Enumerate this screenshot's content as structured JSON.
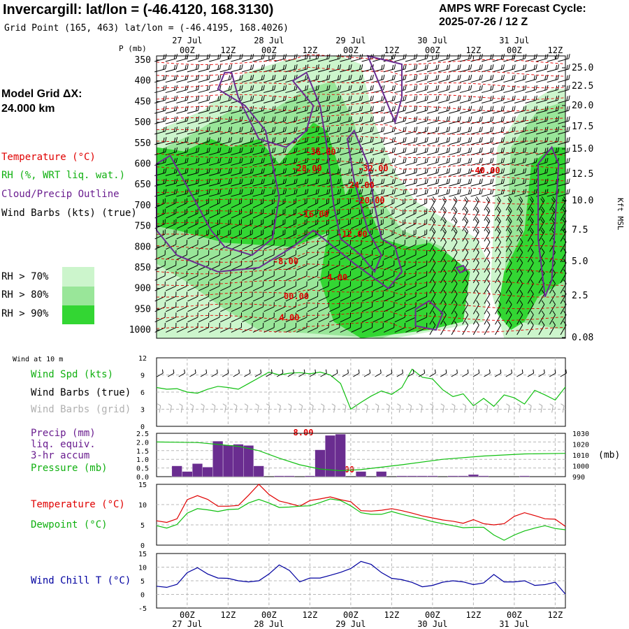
{
  "header": {
    "title": "Invercargill:  lat/lon = (-46.4120, 168.3130)",
    "grid_point": "Grid Point (165, 463) lat/lon = (-46.4195, 168.4026)",
    "cycle_line1": "AMPS WRF Forecast Cycle:",
    "cycle_line2": "2025-07-26 / 12  Z"
  },
  "model_grid": {
    "line1": "Model Grid ΔX:",
    "line2": " 24.000 km"
  },
  "legend": {
    "temperature": "Temperature (°C)",
    "rh": "RH (%, WRT liq. wat.)",
    "cloud": "Cloud/Precip Outline",
    "wind": "Wind Barbs (kts) (true)",
    "rh_levels": [
      "RH > 70%",
      "RH > 80%",
      "RH > 90%"
    ]
  },
  "colors": {
    "rh70": "#ccf5cc",
    "rh80": "#99e699",
    "rh90": "#33d633",
    "temp": "#e00000",
    "dew": "#10c010",
    "cloud": "#6a2d90",
    "chill": "#0000a0",
    "precip": "#6a2d90",
    "grid": "#b8b8b8"
  },
  "time_axis": {
    "tick_labels": [
      "00Z",
      "12Z",
      "00Z",
      "12Z",
      "00Z",
      "12Z",
      "00Z",
      "12Z",
      "00Z",
      "12Z"
    ],
    "day_labels": [
      "27 Jul",
      "28 Jul",
      "29 Jul",
      "30 Jul",
      "31 Jul"
    ]
  },
  "xsec": {
    "p_label": "P (mb)",
    "p_ticks": [
      "350",
      "400",
      "450",
      "500",
      "550",
      "600",
      "650",
      "700",
      "750",
      "800",
      "850",
      "900",
      "950",
      "1000"
    ],
    "kft_ticks": [
      "25.0",
      "22.5",
      "20.0",
      "17.5",
      "15.0",
      "12.5",
      "10.0",
      "7.5",
      "5.0",
      "2.5",
      "0.08"
    ],
    "kft_label": "Kft MSL",
    "isotherm_labels": [
      "-36.00",
      "-28.00",
      "-32.00",
      "-40.00",
      "-24.00",
      "-20.00",
      "-16.00",
      "-12.00",
      "-8.00",
      "-4.00",
      "00.00",
      "4.00",
      "8.00",
      "12.00"
    ]
  },
  "wind_panel": {
    "caption": "Wind at 10 m",
    "spd_label": "Wind Spd (kts)",
    "barbs_true_label": "Wind Barbs (true)",
    "barbs_grid_label": "Wind Barbs (grid)",
    "y_ticks": [
      "12",
      "9",
      "6",
      "3",
      "0"
    ]
  },
  "precip_panel": {
    "label1": "Precip (mm)",
    "label2": "liq. equiv.",
    "label3": "3-hr accum",
    "label4": "Pressure (mb)",
    "left_ticks": [
      "2.5",
      "2.0",
      "1.5",
      "1.0",
      "0.5",
      "0.0"
    ],
    "right_ticks": [
      "1030",
      "1020",
      "1010",
      "1000",
      "990"
    ],
    "right_unit": "(mb)"
  },
  "temp_panel": {
    "label1": "Temperature (°C)",
    "label2": "Dewpoint (°C)",
    "y_ticks": [
      "15",
      "10",
      "5",
      "0"
    ]
  },
  "chill_panel": {
    "label": "Wind Chill T (°C)",
    "y_ticks": [
      "15",
      "10",
      "5",
      "0",
      "-5"
    ]
  },
  "chart_data": [
    {
      "type": "line",
      "title": "Wind Spd (kts)",
      "ylim": [
        0,
        12
      ],
      "x_hours": [
        0,
        3,
        6,
        9,
        12,
        15,
        18,
        21,
        24,
        27,
        30,
        33,
        36,
        39,
        42,
        45,
        48,
        51,
        54,
        57,
        60,
        63,
        66,
        69,
        72,
        75,
        78,
        81,
        84,
        87,
        90,
        93,
        96,
        99,
        102,
        105,
        108,
        111,
        114,
        117,
        120
      ],
      "series": [
        {
          "name": "Wind Spd (kts)",
          "values": [
            6.8,
            6.5,
            6.6,
            6.0,
            5.8,
            6.5,
            7.0,
            6.8,
            6.5,
            7.5,
            8.5,
            9.5,
            9.0,
            9.3,
            9.4,
            9.2,
            9.5,
            9.0,
            7.5,
            3.0,
            4.2,
            5.3,
            6.2,
            5.6,
            6.8,
            10.0,
            8.6,
            8.3,
            6.4,
            5.2,
            5.7,
            3.6,
            4.9,
            3.5,
            5.5,
            5.0,
            3.9,
            6.3,
            5.5,
            4.6,
            6.9
          ]
        }
      ]
    },
    {
      "type": "bar",
      "title": "Precip (mm) liq. equiv. 3-hr accum",
      "ylim": [
        0,
        2.5
      ],
      "x_hours": [
        0,
        3,
        6,
        9,
        12,
        15,
        18,
        21,
        24,
        27,
        30,
        33,
        36,
        39,
        42,
        45,
        48,
        51,
        54,
        57,
        60,
        63,
        66,
        69,
        72,
        75,
        78,
        81,
        84,
        87,
        90,
        93,
        96,
        99,
        102,
        105,
        108,
        111,
        114,
        117,
        120
      ],
      "values": [
        0,
        0,
        0.62,
        0.3,
        0.75,
        0.55,
        2.05,
        1.82,
        1.87,
        1.8,
        0.62,
        0,
        0.05,
        0.05,
        0,
        0.05,
        1.55,
        2.38,
        2.45,
        0,
        0.3,
        0,
        0.3,
        0,
        0.05,
        0.05,
        0.05,
        0.05,
        0,
        0.05,
        0.05,
        0.12,
        0.05,
        0,
        0,
        0,
        0.05,
        0,
        0,
        0,
        0
      ]
    },
    {
      "type": "line",
      "title": "Pressure (mb)",
      "ylim": [
        990,
        1030
      ],
      "x_hours": [
        0,
        12,
        24,
        30,
        36,
        42,
        48,
        54,
        60,
        72,
        84,
        96,
        108,
        120
      ],
      "series": [
        {
          "name": "Pressure (mb)",
          "values": [
            1022,
            1021.5,
            1018,
            1014,
            1007,
            1001,
            997,
            995.5,
            996.5,
            1001,
            1006,
            1009,
            1011,
            1011.5
          ]
        }
      ]
    },
    {
      "type": "line",
      "title": "Temperature / Dewpoint (°C)",
      "ylim": [
        0,
        15
      ],
      "x_hours": [
        0,
        3,
        6,
        9,
        12,
        15,
        18,
        21,
        24,
        27,
        30,
        33,
        36,
        39,
        42,
        45,
        48,
        51,
        54,
        57,
        60,
        63,
        66,
        69,
        72,
        75,
        78,
        81,
        84,
        87,
        90,
        93,
        96,
        99,
        102,
        105,
        108,
        111,
        114,
        117,
        120
      ],
      "series": [
        {
          "name": "Temperature (°C)",
          "values": [
            6.0,
            5.6,
            6.5,
            11.2,
            12.2,
            11.3,
            9.6,
            9.6,
            9.8,
            12.3,
            15.0,
            12.5,
            10.9,
            10.3,
            9.6,
            11.0,
            11.4,
            11.9,
            11.2,
            10.7,
            8.5,
            8.4,
            8.6,
            9.0,
            8.5,
            7.9,
            7.2,
            6.7,
            6.2,
            5.9,
            5.4,
            6.3,
            5.3,
            5.0,
            5.3,
            7.1,
            8.0,
            7.3,
            6.5,
            6.4,
            4.6
          ]
        },
        {
          "name": "Dewpoint (°C)",
          "values": [
            4.8,
            4.2,
            5.1,
            7.9,
            9.0,
            8.7,
            8.3,
            8.8,
            8.9,
            10.4,
            11.3,
            10.4,
            9.3,
            9.4,
            9.6,
            9.7,
            10.5,
            11.4,
            11.0,
            9.7,
            8.0,
            7.6,
            7.6,
            8.3,
            7.6,
            7.0,
            6.5,
            5.8,
            5.3,
            4.8,
            4.3,
            4.4,
            4.4,
            2.5,
            1.2,
            2.5,
            3.5,
            4.2,
            4.8,
            4.1,
            3.8
          ]
        }
      ]
    },
    {
      "type": "line",
      "title": "Wind Chill T (°C)",
      "ylim": [
        -5,
        15
      ],
      "x_hours": [
        0,
        3,
        6,
        9,
        12,
        15,
        18,
        21,
        24,
        27,
        30,
        33,
        36,
        39,
        42,
        45,
        48,
        51,
        54,
        57,
        60,
        63,
        66,
        69,
        72,
        75,
        78,
        81,
        84,
        87,
        90,
        93,
        96,
        99,
        102,
        105,
        108,
        111,
        114,
        117,
        120
      ],
      "series": [
        {
          "name": "Wind Chill T (°C)",
          "values": [
            3.0,
            2.6,
            3.7,
            8.0,
            9.8,
            7.5,
            6.0,
            5.9,
            5.0,
            4.6,
            5.0,
            7.5,
            10.8,
            8.8,
            4.6,
            6.0,
            6.0,
            7.0,
            8.1,
            9.5,
            12.1,
            11.0,
            8.0,
            5.9,
            5.4,
            4.4,
            2.8,
            3.3,
            4.5,
            5.0,
            4.6,
            3.6,
            4.2,
            7.3,
            4.6,
            4.6,
            5.0,
            3.3,
            3.6,
            4.5,
            0.1
          ]
        }
      ]
    }
  ]
}
